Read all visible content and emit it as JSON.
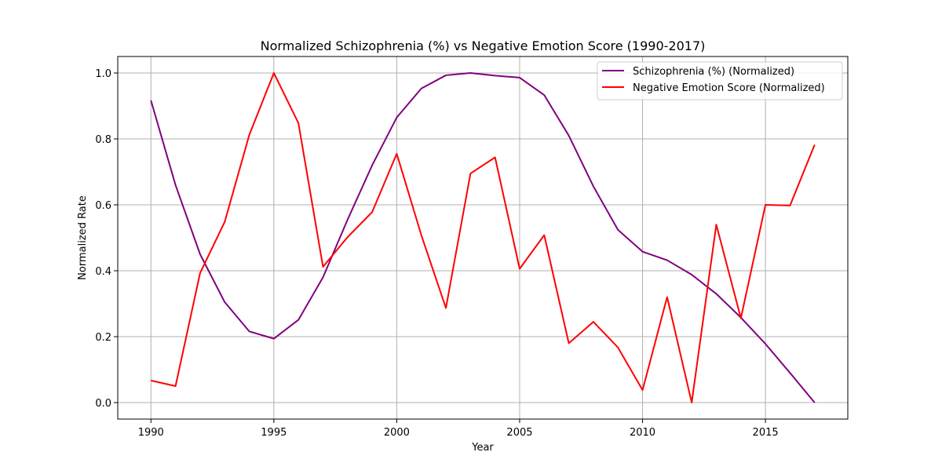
{
  "chart_data": {
    "type": "line",
    "title": "Normalized Schizophrenia (%) vs Negative Emotion Score (1990-2017)",
    "xlabel": "Year",
    "ylabel": "Normalized Rate",
    "xlim": [
      1988.65,
      2018.35
    ],
    "ylim": [
      -0.05,
      1.05
    ],
    "xticks": [
      1990,
      1995,
      2000,
      2005,
      2010,
      2015
    ],
    "yticks": [
      0.0,
      0.2,
      0.4,
      0.6,
      0.8,
      1.0
    ],
    "xtick_labels": [
      "1990",
      "1995",
      "2000",
      "2005",
      "2010",
      "2015"
    ],
    "ytick_labels": [
      "0.0",
      "0.2",
      "0.4",
      "0.6",
      "0.8",
      "1.0"
    ],
    "grid": true,
    "legend_position": "top-right",
    "x": [
      1990,
      1991,
      1992,
      1993,
      1994,
      1995,
      1996,
      1997,
      1998,
      1999,
      2000,
      2001,
      2002,
      2003,
      2004,
      2005,
      2006,
      2007,
      2008,
      2009,
      2010,
      2011,
      2012,
      2013,
      2014,
      2015,
      2016,
      2017
    ],
    "series": [
      {
        "name": "Schizophrenia (%) (Normalized)",
        "color": "#800080",
        "values": [
          0.917,
          0.66,
          0.45,
          0.305,
          0.216,
          0.194,
          0.251,
          0.38,
          0.555,
          0.72,
          0.865,
          0.953,
          0.993,
          1.0,
          0.992,
          0.986,
          0.933,
          0.81,
          0.656,
          0.524,
          0.458,
          0.432,
          0.388,
          0.33,
          0.258,
          0.178,
          0.09,
          0.0
        ]
      },
      {
        "name": "Negative Emotion Score (Normalized)",
        "color": "#ff0000",
        "values": [
          0.067,
          0.05,
          0.393,
          0.548,
          0.812,
          1.0,
          0.848,
          0.412,
          0.502,
          0.578,
          0.755,
          0.508,
          0.287,
          0.695,
          0.744,
          0.406,
          0.508,
          0.18,
          0.245,
          0.167,
          0.038,
          0.32,
          0.0,
          0.54,
          0.256,
          0.6,
          0.598,
          0.782
        ]
      }
    ]
  }
}
